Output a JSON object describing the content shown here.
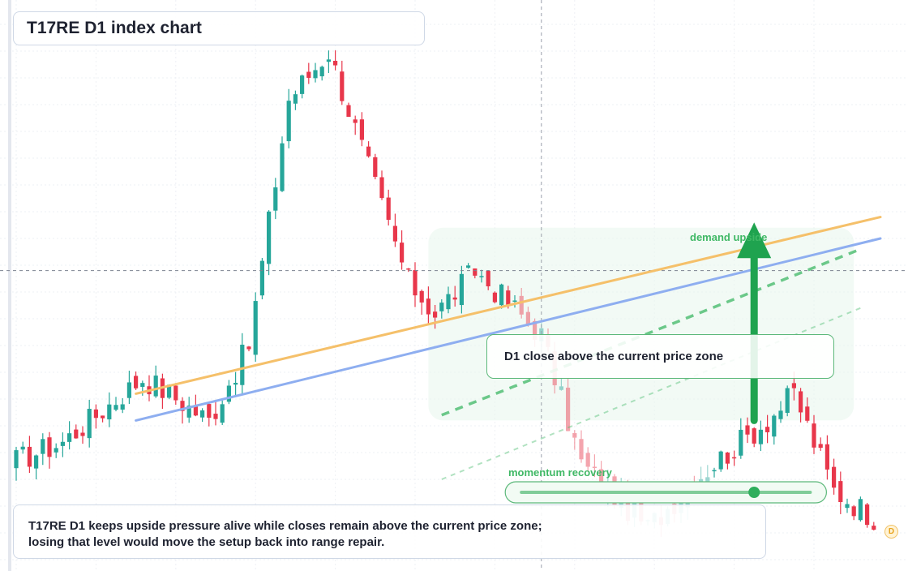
{
  "title": "T17RE D1 index chart",
  "callout_text": "D1 close above the current price zone",
  "demand_label": "demand upside",
  "momentum_label": "momentum recovery",
  "summary_line1": "T17RE D1 keeps upside pressure alive while closes remain above the current price zone;",
  "summary_line2": "losing that level would move the setup back into range repair.",
  "badge_letter": "D",
  "colors": {
    "up": "#26a69a",
    "down": "#e8374b",
    "trend_orange": "#f5c06a",
    "trend_blue": "#8eaef0",
    "projection_green": "#3fb865",
    "arrow_green": "#1fa34f"
  },
  "chart_data": {
    "type": "candlestick",
    "title": "T17RE D1 index chart",
    "xlabel": "",
    "ylabel": "",
    "timeframe": "D1",
    "ylim": [
      0,
      100
    ],
    "x_range": [
      0,
      130
    ],
    "grid": true,
    "legend": "none",
    "annotations": [
      "demand upside",
      "momentum recovery",
      "D1 close above the current price zone"
    ],
    "seed": 17,
    "segments": [
      {
        "from": 0,
        "to": 8,
        "start": 18,
        "end": 22
      },
      {
        "from": 8,
        "to": 20,
        "start": 22,
        "end": 34
      },
      {
        "from": 20,
        "to": 24,
        "start": 34,
        "end": 31
      },
      {
        "from": 24,
        "to": 30,
        "start": 31,
        "end": 26
      },
      {
        "from": 30,
        "to": 36,
        "start": 26,
        "end": 40
      },
      {
        "from": 36,
        "to": 42,
        "start": 40,
        "end": 86
      },
      {
        "from": 42,
        "to": 48,
        "start": 86,
        "end": 95
      },
      {
        "from": 48,
        "to": 56,
        "start": 95,
        "end": 66
      },
      {
        "from": 56,
        "to": 60,
        "start": 66,
        "end": 52
      },
      {
        "from": 60,
        "to": 64,
        "start": 52,
        "end": 46
      },
      {
        "from": 64,
        "to": 70,
        "start": 46,
        "end": 54
      },
      {
        "from": 70,
        "to": 80,
        "start": 54,
        "end": 42
      },
      {
        "from": 80,
        "to": 86,
        "start": 42,
        "end": 18
      },
      {
        "from": 86,
        "to": 96,
        "start": 18,
        "end": 6
      },
      {
        "from": 96,
        "to": 104,
        "start": 6,
        "end": 16
      },
      {
        "from": 104,
        "to": 114,
        "start": 16,
        "end": 26
      },
      {
        "from": 114,
        "to": 118,
        "start": 26,
        "end": 31
      },
      {
        "from": 118,
        "to": 124,
        "start": 31,
        "end": 13
      },
      {
        "from": 124,
        "to": 130,
        "start": 13,
        "end": 8
      }
    ],
    "trendlines": [
      {
        "name": "orange",
        "from": [
          18,
          31
        ],
        "to": [
          130,
          64
        ]
      },
      {
        "name": "blue",
        "from": [
          18,
          26
        ],
        "to": [
          130,
          60
        ]
      }
    ],
    "projections": [
      {
        "name": "main",
        "from": [
          64,
          27
        ],
        "to": [
          127,
          58
        ],
        "style": "dashed"
      },
      {
        "name": "lower",
        "from": [
          64,
          15
        ],
        "to": [
          127,
          47
        ],
        "style": "dashed-light"
      }
    ],
    "current_price": 54,
    "crosshair_x": 79,
    "arrow": {
      "from_value": 26,
      "to_value": 63,
      "at_x": 111
    },
    "momentum_bar": {
      "from_x": 76,
      "to_x": 117,
      "marker_x": 111
    }
  }
}
